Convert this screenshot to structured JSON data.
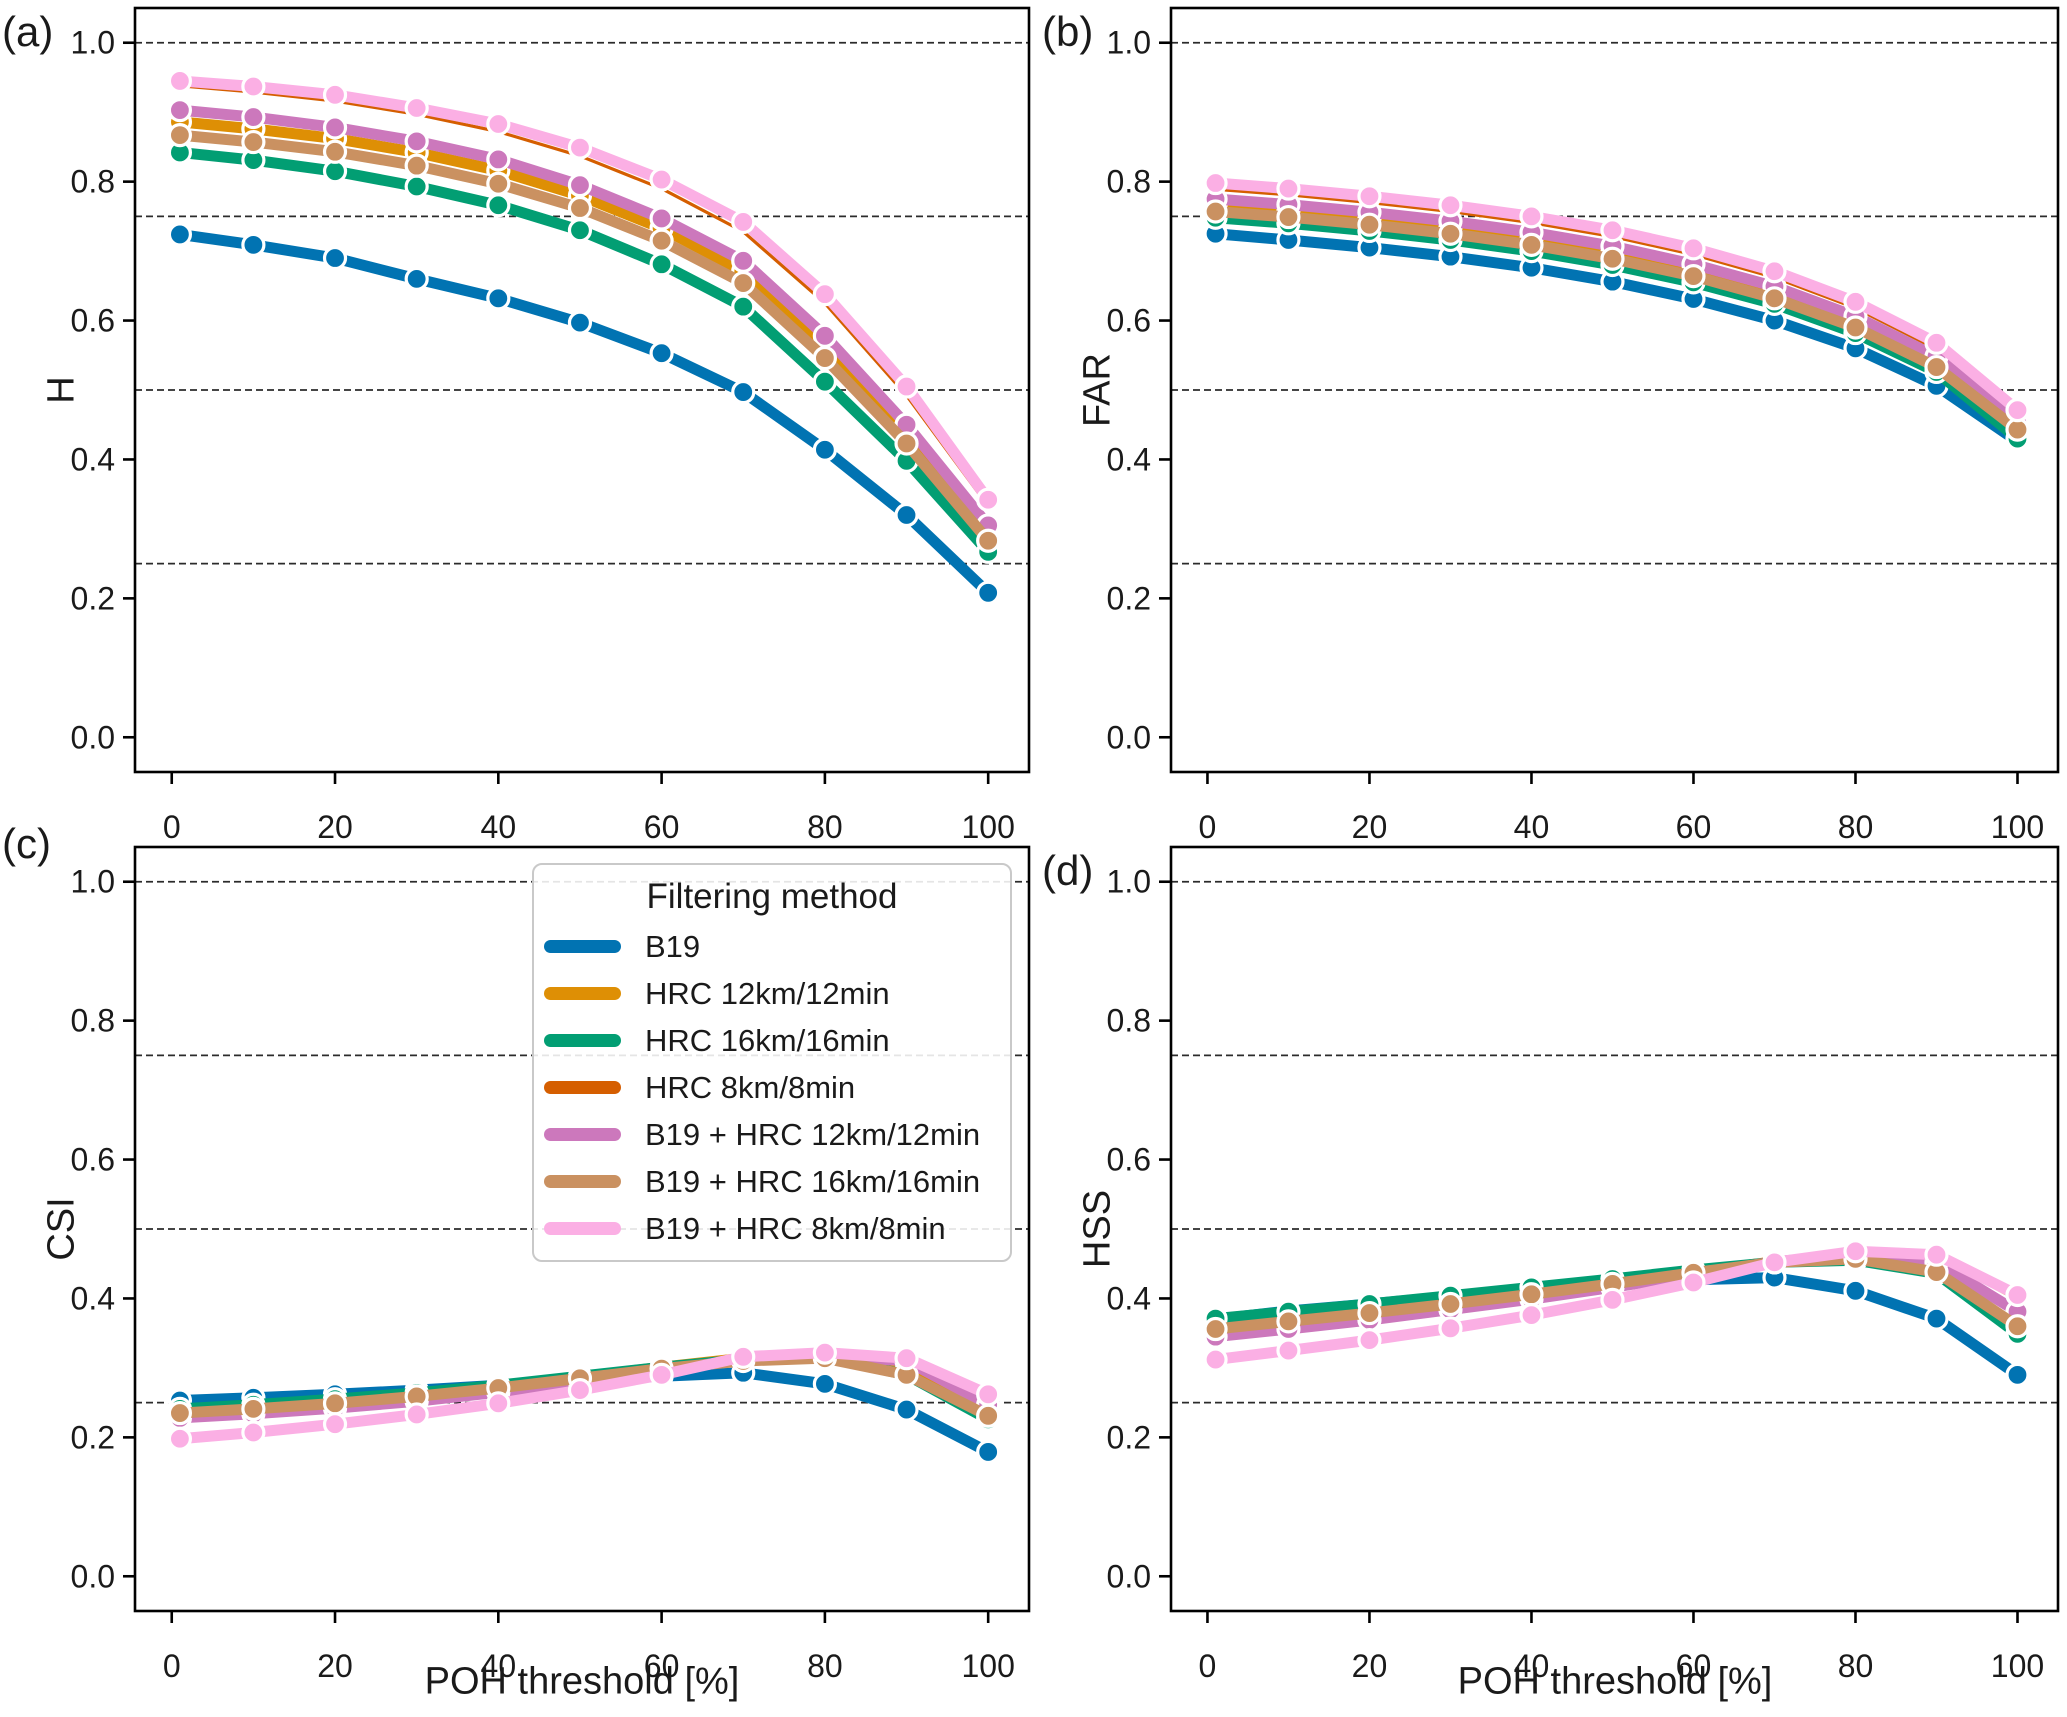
{
  "figure": {
    "background": "#ffffff"
  },
  "axes": {
    "xlim": [
      -4.5,
      105
    ],
    "ylim": [
      -0.05,
      1.05
    ],
    "xticks": [
      {
        "v": 0,
        "label": "0"
      },
      {
        "v": 20,
        "label": "20"
      },
      {
        "v": 40,
        "label": "40"
      },
      {
        "v": 60,
        "label": "60"
      },
      {
        "v": 80,
        "label": "80"
      },
      {
        "v": 100,
        "label": "100"
      }
    ],
    "yticks": [
      {
        "v": 0.0,
        "label": "0.0"
      },
      {
        "v": 0.2,
        "label": "0.2"
      },
      {
        "v": 0.4,
        "label": "0.4"
      },
      {
        "v": 0.6,
        "label": "0.6"
      },
      {
        "v": 0.8,
        "label": "0.8"
      },
      {
        "v": 1.0,
        "label": "1.0"
      }
    ],
    "gridlines": [
      0.25,
      0.5,
      0.75,
      1.0
    ]
  },
  "legend": {
    "title": "Filtering method",
    "entries": [
      {
        "name": "B19",
        "label": "B19",
        "color": "#0173b2",
        "thin": false
      },
      {
        "name": "HRC 12km/12min",
        "label": "HRC 12km/12min",
        "color": "#de8f05",
        "thin": false
      },
      {
        "name": "HRC 16km/16min",
        "label": "HRC 16km/16min",
        "color": "#029e73",
        "thin": false
      },
      {
        "name": "HRC 8km/8min",
        "label": "HRC 8km/8min",
        "color": "#d55e00",
        "thin": true
      },
      {
        "name": "B19 + HRC 12km/12min",
        "label": "B19 + HRC 12km/12min",
        "color": "#cc78bc",
        "thin": false
      },
      {
        "name": "B19 + HRC 16km/16min",
        "label": "B19 + HRC 16km/16min",
        "color": "#ca9161",
        "thin": false
      },
      {
        "name": "B19 + HRC 8km/8min",
        "label": "B19 + HRC 8km/8min",
        "color": "#fbafe4",
        "thin": false
      }
    ]
  },
  "chart_data": [
    {
      "panel": "a",
      "panel_label": "(a)",
      "type": "line",
      "ylabel": "H",
      "xlabel": "",
      "x": [
        1,
        10,
        20,
        30,
        40,
        50,
        60,
        70,
        80,
        90,
        100
      ],
      "series": [
        {
          "name": "B19",
          "values": [
            0.724,
            0.709,
            0.69,
            0.66,
            0.632,
            0.597,
            0.553,
            0.497,
            0.414,
            0.32,
            0.208
          ]
        },
        {
          "name": "HRC 12km/12min",
          "values": [
            0.886,
            0.876,
            0.862,
            0.842,
            0.816,
            0.78,
            0.733,
            0.671,
            0.563,
            0.437,
            0.297
          ]
        },
        {
          "name": "HRC 16km/16min",
          "values": [
            0.842,
            0.831,
            0.815,
            0.793,
            0.766,
            0.73,
            0.681,
            0.62,
            0.512,
            0.398,
            0.267
          ]
        },
        {
          "name": "HRC 8km/8min",
          "values": [
            0.938,
            0.929,
            0.916,
            0.897,
            0.872,
            0.837,
            0.79,
            0.728,
            0.625,
            0.492,
            0.333
          ]
        },
        {
          "name": "B19 + HRC 12km/12min",
          "values": [
            0.903,
            0.893,
            0.878,
            0.858,
            0.832,
            0.795,
            0.747,
            0.686,
            0.578,
            0.45,
            0.305
          ]
        },
        {
          "name": "B19 + HRC 16km/16min",
          "values": [
            0.867,
            0.857,
            0.843,
            0.823,
            0.797,
            0.762,
            0.715,
            0.654,
            0.546,
            0.423,
            0.283
          ]
        },
        {
          "name": "B19 + HRC 8km/8min",
          "values": [
            0.945,
            0.937,
            0.925,
            0.906,
            0.883,
            0.849,
            0.803,
            0.742,
            0.638,
            0.505,
            0.342
          ]
        }
      ]
    },
    {
      "panel": "b",
      "panel_label": "(b)",
      "type": "line",
      "ylabel": "FAR",
      "xlabel": "",
      "x": [
        1,
        10,
        20,
        30,
        40,
        50,
        60,
        70,
        80,
        90,
        100
      ],
      "series": [
        {
          "name": "B19",
          "values": [
            0.725,
            0.716,
            0.705,
            0.692,
            0.676,
            0.656,
            0.631,
            0.6,
            0.56,
            0.506,
            0.426
          ]
        },
        {
          "name": "HRC 12km/12min",
          "values": [
            0.766,
            0.758,
            0.747,
            0.734,
            0.718,
            0.698,
            0.672,
            0.64,
            0.597,
            0.54,
            0.446
          ]
        },
        {
          "name": "HRC 16km/16min",
          "values": [
            0.748,
            0.74,
            0.729,
            0.716,
            0.7,
            0.68,
            0.655,
            0.624,
            0.582,
            0.526,
            0.43
          ]
        },
        {
          "name": "HRC 8km/8min",
          "values": [
            0.789,
            0.781,
            0.77,
            0.757,
            0.741,
            0.721,
            0.695,
            0.662,
            0.618,
            0.559,
            0.462
          ]
        },
        {
          "name": "B19 + HRC 12km/12min",
          "values": [
            0.775,
            0.767,
            0.756,
            0.743,
            0.727,
            0.707,
            0.681,
            0.649,
            0.606,
            0.548,
            0.452
          ]
        },
        {
          "name": "B19 + HRC 16km/16min",
          "values": [
            0.757,
            0.749,
            0.738,
            0.725,
            0.709,
            0.689,
            0.664,
            0.632,
            0.59,
            0.533,
            0.443
          ]
        },
        {
          "name": "B19 + HRC 8km/8min",
          "values": [
            0.798,
            0.79,
            0.779,
            0.766,
            0.75,
            0.73,
            0.704,
            0.671,
            0.627,
            0.568,
            0.471
          ]
        }
      ]
    },
    {
      "panel": "c",
      "panel_label": "(c)",
      "type": "line",
      "ylabel": "CSI",
      "xlabel": "POH threshold [%]",
      "x": [
        1,
        10,
        20,
        30,
        40,
        50,
        60,
        70,
        80,
        90,
        100
      ],
      "series": [
        {
          "name": "B19",
          "values": [
            0.253,
            0.257,
            0.262,
            0.268,
            0.275,
            0.282,
            0.288,
            0.293,
            0.277,
            0.24,
            0.179
          ]
        },
        {
          "name": "HRC 12km/12min",
          "values": [
            0.238,
            0.244,
            0.252,
            0.261,
            0.273,
            0.287,
            0.301,
            0.314,
            0.319,
            0.297,
            0.232
          ]
        },
        {
          "name": "HRC 16km/16min",
          "values": [
            0.241,
            0.247,
            0.255,
            0.264,
            0.275,
            0.288,
            0.301,
            0.312,
            0.316,
            0.29,
            0.226
          ]
        },
        {
          "name": "HRC 8km/8min",
          "values": [
            0.201,
            0.21,
            0.222,
            0.236,
            0.252,
            0.27,
            0.292,
            0.317,
            0.323,
            0.314,
            0.259
          ]
        },
        {
          "name": "B19 + HRC 12km/12min",
          "values": [
            0.228,
            0.234,
            0.242,
            0.252,
            0.265,
            0.28,
            0.296,
            0.312,
            0.318,
            0.31,
            0.247
          ]
        },
        {
          "name": "B19 + HRC 16km/16min",
          "values": [
            0.235,
            0.241,
            0.249,
            0.259,
            0.271,
            0.285,
            0.299,
            0.31,
            0.314,
            0.29,
            0.231
          ]
        },
        {
          "name": "B19 + HRC 8km/8min",
          "values": [
            0.198,
            0.207,
            0.219,
            0.233,
            0.249,
            0.268,
            0.29,
            0.316,
            0.322,
            0.314,
            0.262
          ]
        }
      ]
    },
    {
      "panel": "d",
      "panel_label": "(d)",
      "type": "line",
      "ylabel": "HSS",
      "xlabel": "POH threshold [%]",
      "x": [
        1,
        10,
        20,
        30,
        40,
        50,
        60,
        70,
        80,
        90,
        100
      ],
      "series": [
        {
          "name": "B19",
          "values": [
            0.37,
            0.382,
            0.392,
            0.403,
            0.413,
            0.421,
            0.427,
            0.43,
            0.411,
            0.371,
            0.29
          ]
        },
        {
          "name": "HRC 12km/12min",
          "values": [
            0.357,
            0.368,
            0.38,
            0.393,
            0.407,
            0.422,
            0.438,
            0.453,
            0.458,
            0.442,
            0.356
          ]
        },
        {
          "name": "HRC 16km/16min",
          "values": [
            0.371,
            0.381,
            0.392,
            0.404,
            0.416,
            0.428,
            0.441,
            0.452,
            0.455,
            0.436,
            0.349
          ]
        },
        {
          "name": "HRC 8km/8min",
          "values": [
            0.31,
            0.323,
            0.338,
            0.355,
            0.374,
            0.396,
            0.421,
            0.45,
            0.466,
            0.46,
            0.398
          ]
        },
        {
          "name": "B19 + HRC 12km/12min",
          "values": [
            0.345,
            0.356,
            0.369,
            0.384,
            0.399,
            0.416,
            0.434,
            0.453,
            0.463,
            0.452,
            0.381
          ]
        },
        {
          "name": "B19 + HRC 16km/16min",
          "values": [
            0.356,
            0.367,
            0.379,
            0.392,
            0.406,
            0.421,
            0.437,
            0.452,
            0.457,
            0.438,
            0.36
          ]
        },
        {
          "name": "B19 + HRC 8km/8min",
          "values": [
            0.312,
            0.325,
            0.34,
            0.357,
            0.376,
            0.398,
            0.423,
            0.452,
            0.468,
            0.463,
            0.405
          ]
        }
      ]
    }
  ]
}
